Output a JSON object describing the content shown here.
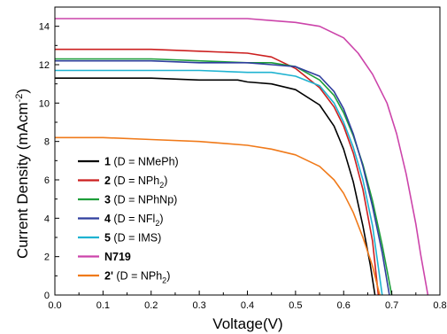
{
  "chart_data": {
    "type": "line",
    "title": "",
    "xlabel": "Voltage(V)",
    "ylabel_parts": {
      "main": "Current Density (mAcm",
      "sup": "-2",
      "close": ")"
    },
    "xlim": [
      0.0,
      0.8
    ],
    "ylim": [
      0,
      15
    ],
    "xticks": [
      "0.0",
      "0.1",
      "0.2",
      "0.3",
      "0.4",
      "0.5",
      "0.6",
      "0.7",
      "0.8"
    ],
    "yticks": [
      "0",
      "2",
      "4",
      "6",
      "8",
      "10",
      "12",
      "14"
    ],
    "grid": false,
    "legend_position": "lower-left",
    "series": [
      {
        "name_bold": "1",
        "name_rest": " (D = NMePh)",
        "color": "#000000",
        "x": [
          0,
          0.1,
          0.2,
          0.3,
          0.38,
          0.4,
          0.45,
          0.5,
          0.55,
          0.58,
          0.6,
          0.62,
          0.64,
          0.655,
          0.665
        ],
        "y": [
          11.3,
          11.3,
          11.3,
          11.2,
          11.2,
          11.1,
          11.0,
          10.7,
          9.9,
          8.8,
          7.6,
          5.9,
          3.6,
          1.6,
          0
        ]
      },
      {
        "name_bold": "2",
        "name_rest": " (D = NPh",
        "name_sub": "2",
        "name_close": ")",
        "color": "#cc1f1f",
        "x": [
          0,
          0.1,
          0.2,
          0.3,
          0.4,
          0.45,
          0.5,
          0.55,
          0.58,
          0.6,
          0.62,
          0.64,
          0.66,
          0.672
        ],
        "y": [
          12.8,
          12.8,
          12.8,
          12.7,
          12.6,
          12.4,
          11.8,
          10.8,
          9.8,
          8.8,
          7.4,
          5.5,
          2.8,
          0
        ]
      },
      {
        "name_bold": "3",
        "name_rest": " (D = NPhNp)",
        "color": "#1e9e3a",
        "x": [
          0,
          0.1,
          0.2,
          0.3,
          0.4,
          0.45,
          0.5,
          0.55,
          0.58,
          0.6,
          0.62,
          0.64,
          0.66,
          0.68,
          0.7
        ],
        "y": [
          12.3,
          12.3,
          12.3,
          12.2,
          12.1,
          12.1,
          11.9,
          11.2,
          10.4,
          9.5,
          8.3,
          6.8,
          4.9,
          2.6,
          0
        ]
      },
      {
        "name_bold": "4",
        "name_rest": " (D = NFl",
        "name_sub": "2",
        "name_close": ")",
        "color": "#2f3f9e",
        "x": [
          0,
          0.1,
          0.2,
          0.3,
          0.4,
          0.45,
          0.5,
          0.55,
          0.58,
          0.6,
          0.62,
          0.64,
          0.66,
          0.68,
          0.695
        ],
        "y": [
          12.2,
          12.2,
          12.2,
          12.1,
          12.1,
          12.0,
          11.9,
          11.4,
          10.6,
          9.7,
          8.4,
          6.7,
          4.6,
          2.2,
          0
        ]
      },
      {
        "name_bold": "5",
        "name_rest": " (D = IMS)",
        "color": "#1fb3d1",
        "x": [
          0,
          0.1,
          0.2,
          0.3,
          0.4,
          0.45,
          0.5,
          0.55,
          0.58,
          0.6,
          0.62,
          0.64,
          0.66,
          0.68
        ],
        "y": [
          11.7,
          11.7,
          11.7,
          11.7,
          11.6,
          11.6,
          11.4,
          10.9,
          10.0,
          9.0,
          7.7,
          6.0,
          3.6,
          0
        ]
      },
      {
        "name_bold": "N719",
        "name_rest": "",
        "color": "#cc44aa",
        "x": [
          0,
          0.1,
          0.2,
          0.3,
          0.4,
          0.45,
          0.5,
          0.55,
          0.6,
          0.63,
          0.66,
          0.69,
          0.71,
          0.73,
          0.75,
          0.76,
          0.775
        ],
        "y": [
          14.4,
          14.4,
          14.4,
          14.4,
          14.4,
          14.3,
          14.2,
          14.0,
          13.4,
          12.6,
          11.5,
          10.0,
          8.4,
          6.3,
          3.7,
          2.1,
          0
        ]
      },
      {
        "name_bold": "2'",
        "name_rest": " (D = NPh",
        "name_sub": "2",
        "name_close": ")",
        "color": "#f07a1a",
        "x": [
          0,
          0.1,
          0.2,
          0.3,
          0.35,
          0.4,
          0.45,
          0.5,
          0.55,
          0.58,
          0.6,
          0.62,
          0.64,
          0.66,
          0.675
        ],
        "y": [
          8.2,
          8.2,
          8.1,
          8.0,
          7.9,
          7.8,
          7.6,
          7.3,
          6.7,
          6.0,
          5.3,
          4.3,
          3.0,
          1.5,
          0
        ]
      }
    ]
  }
}
